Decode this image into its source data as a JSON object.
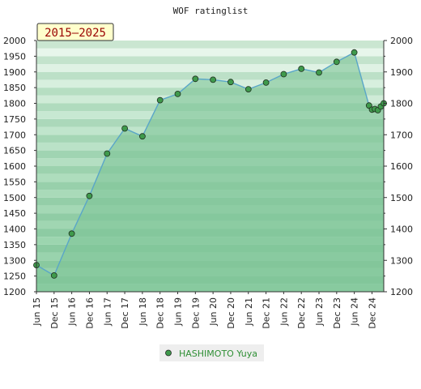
{
  "title": "WOF ratinglist",
  "period_badge": "2015–2025",
  "legend": {
    "label": "HASHIMOTO Yuya"
  },
  "colors": {
    "fill": "#7fc497",
    "line": "#5aa6c8",
    "marker": "#3f9a4c",
    "legend_text": "#2f8f35",
    "badge_bg": "#ffffcc",
    "badge_text": "#990000"
  },
  "chart_data": {
    "type": "area",
    "title": "WOF ratinglist",
    "ylim": [
      1200,
      2000
    ],
    "y_ticks": [
      1200,
      1250,
      1300,
      1350,
      1400,
      1450,
      1500,
      1550,
      1600,
      1650,
      1700,
      1750,
      1800,
      1850,
      1900,
      1950,
      2000
    ],
    "x_tick_labels": [
      "Jun 15",
      "Dec 15",
      "Jun 16",
      "Dec 16",
      "Jun 17",
      "Dec 17",
      "Jun 18",
      "Dec 18",
      "Jun 19",
      "Dec 19",
      "Jun 20",
      "Dec 20",
      "Jun 21",
      "Dec 21",
      "Jun 22",
      "Dec 22",
      "Jun 23",
      "Dec 23",
      "Jun 24",
      "Dec 24"
    ],
    "series": [
      {
        "name": "HASHIMOTO Yuya",
        "points": [
          [
            "Jun 15",
            1285
          ],
          [
            "Dec 15",
            1252
          ],
          [
            "Jun 16",
            1385
          ],
          [
            "Dec 16",
            1505
          ],
          [
            "Jun 17",
            1640
          ],
          [
            "Dec 17",
            1720
          ],
          [
            "Jun 18",
            1695
          ],
          [
            "Dec 18",
            1810
          ],
          [
            "Jun 19",
            1830
          ],
          [
            "Dec 19",
            1878
          ],
          [
            "Jun 20",
            1875
          ],
          [
            "Dec 20",
            1868
          ],
          [
            "Jun 21",
            1845
          ],
          [
            "Dec 21",
            1866
          ],
          [
            "Jun 22",
            1893
          ],
          [
            "Dec 22",
            1910
          ],
          [
            "Jun 23",
            1898
          ],
          [
            "Dec 23",
            1932
          ],
          [
            "Jun 24",
            1962
          ],
          [
            "Nov 24",
            1793
          ],
          [
            "Dec 24",
            1780
          ],
          [
            "Jan 25",
            1782
          ],
          [
            "Feb 25",
            1778
          ],
          [
            "Mar 25",
            1790
          ],
          [
            "Apr 25",
            1800
          ]
        ]
      }
    ]
  }
}
